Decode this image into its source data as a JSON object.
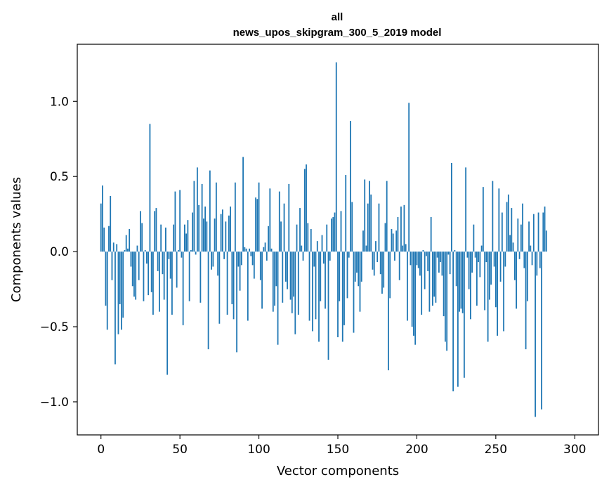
{
  "chart_data": {
    "type": "bar",
    "title": "all",
    "subtitle": "news_upos_skipgram_300_5_2019 model",
    "xlabel": "Vector components",
    "ylabel": "Components values",
    "xlim": [
      -15,
      315
    ],
    "ylim": [
      -1.22,
      1.38
    ],
    "xticks": [
      0,
      50,
      100,
      150,
      200,
      250,
      300
    ],
    "xtick_labels": [
      "0",
      "50",
      "100",
      "150",
      "200",
      "250",
      "300"
    ],
    "yticks": [
      -1.0,
      -0.5,
      0.0,
      0.5,
      1.0
    ],
    "ytick_labels": [
      "−1.0",
      "−0.5",
      "0.0",
      "0.5",
      "1.0"
    ],
    "bar_color": "#1f77b4",
    "values": [
      0.32,
      0.44,
      0.16,
      -0.36,
      -0.52,
      0.17,
      0.37,
      -0.19,
      0.06,
      -0.75,
      0.05,
      -0.55,
      -0.35,
      -0.52,
      -0.44,
      0.01,
      0.11,
      0.02,
      0.15,
      -0.1,
      -0.23,
      -0.3,
      -0.32,
      0.04,
      -0.19,
      0.27,
      0.19,
      -0.33,
      0.01,
      -0.08,
      -0.29,
      0.85,
      -0.27,
      -0.42,
      0.27,
      0.29,
      -0.13,
      -0.4,
      0.18,
      -0.15,
      -0.32,
      0.16,
      -0.82,
      -0.05,
      -0.18,
      -0.42,
      0.18,
      0.4,
      -0.24,
      0.01,
      0.41,
      -0.04,
      -0.49,
      0.18,
      0.12,
      0.21,
      -0.33,
      0.01,
      0.26,
      0.47,
      -0.02,
      0.56,
      0.31,
      -0.34,
      0.45,
      0.22,
      0.3,
      0.2,
      -0.65,
      0.54,
      -0.12,
      -0.1,
      0.22,
      0.46,
      -0.16,
      -0.48,
      0.25,
      0.28,
      -0.05,
      0.2,
      -0.42,
      0.24,
      0.3,
      -0.35,
      -0.45,
      0.46,
      -0.67,
      -0.1,
      -0.26,
      -0.09,
      0.63,
      0.03,
      0.02,
      -0.46,
      0.02,
      -0.03,
      -0.09,
      -0.18,
      0.36,
      0.35,
      0.46,
      -0.19,
      -0.38,
      0.03,
      0.06,
      -0.06,
      0.17,
      0.42,
      0.02,
      -0.4,
      -0.36,
      -0.23,
      -0.62,
      0.4,
      0.2,
      -0.34,
      0.32,
      -0.2,
      -0.25,
      0.45,
      -0.32,
      -0.41,
      -0.3,
      -0.55,
      0.18,
      -0.42,
      0.29,
      0.04,
      -0.06,
      0.55,
      0.58,
      0.19,
      -0.46,
      0.15,
      -0.53,
      -0.1,
      -0.45,
      0.07,
      -0.6,
      -0.33,
      0.11,
      -0.08,
      -0.38,
      0.18,
      -0.72,
      -0.06,
      0.22,
      0.23,
      0.26,
      1.26,
      -0.57,
      -0.33,
      0.27,
      -0.6,
      -0.49,
      0.51,
      -0.31,
      -0.04,
      0.87,
      0.33,
      -0.54,
      -0.2,
      -0.14,
      -0.23,
      -0.4,
      -0.2,
      0.14,
      0.48,
      0.04,
      0.32,
      0.47,
      0.38,
      -0.12,
      -0.16,
      0.07,
      -0.07,
      0.32,
      -0.15,
      -0.28,
      -0.24,
      0.19,
      0.47,
      -0.79,
      -0.31,
      0.15,
      0.12,
      -0.06,
      0.14,
      0.23,
      -0.19,
      0.3,
      0.04,
      0.31,
      0.05,
      -0.46,
      0.99,
      -0.09,
      -0.5,
      -0.56,
      -0.62,
      -0.09,
      -0.11,
      -0.16,
      -0.42,
      0.01,
      -0.25,
      -0.03,
      -0.13,
      -0.4,
      0.23,
      -0.36,
      -0.3,
      -0.34,
      -0.04,
      -0.14,
      -0.07,
      -0.16,
      -0.43,
      -0.6,
      -0.66,
      -0.02,
      -0.15,
      0.59,
      -0.93,
      0.01,
      -0.23,
      -0.9,
      -0.4,
      -0.38,
      -0.41,
      -0.84,
      0.56,
      -0.04,
      -0.25,
      -0.45,
      -0.14,
      0.18,
      -0.04,
      -0.36,
      -0.07,
      -0.17,
      0.04,
      0.43,
      -0.39,
      -0.07,
      -0.6,
      -0.32,
      -0.22,
      0.47,
      -0.1,
      -0.37,
      -0.56,
      0.42,
      -0.2,
      0.26,
      -0.53,
      -0.1,
      0.33,
      0.38,
      0.11,
      0.29,
      0.06,
      -0.19,
      -0.38,
      0.22,
      -0.05,
      0.18,
      0.32,
      -0.11,
      -0.65,
      -0.33,
      0.2,
      0.04,
      -0.09,
      0.25,
      -1.1,
      -0.16,
      0.26,
      -0.11,
      -1.05,
      0.26,
      0.3,
      0.14
    ]
  }
}
